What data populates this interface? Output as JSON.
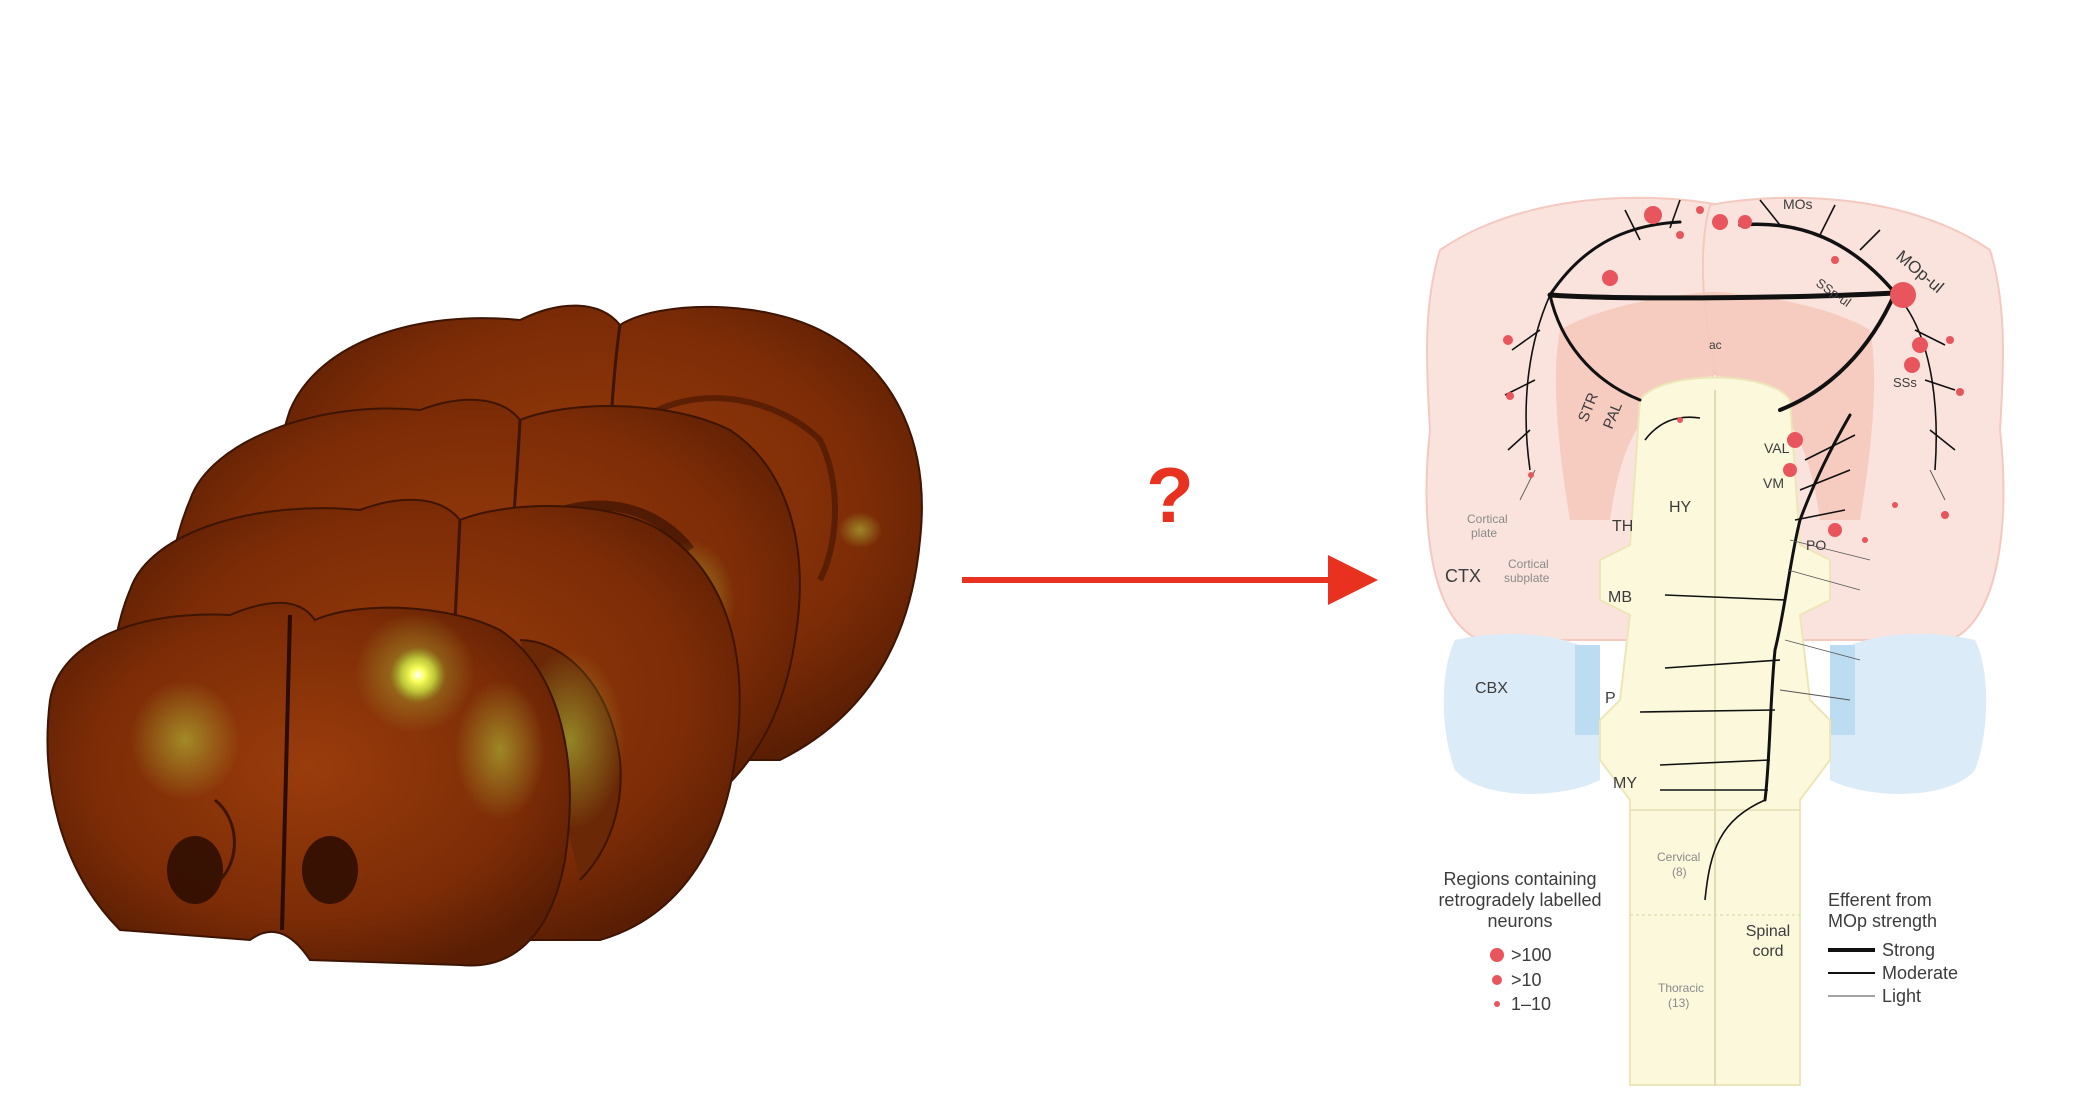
{
  "question_mark": "?",
  "labels": {
    "mos": "MOs",
    "ssp_ul": "SSp-ul",
    "mop_ul": "MOp-ul",
    "ssS": "SSs",
    "ac": "ac",
    "str": "STR",
    "pal": "PAL",
    "val": "VAL",
    "vm": "VM",
    "po": "PO",
    "th": "TH",
    "hy": "HY",
    "mb": "MB",
    "p": "P",
    "my": "MY",
    "ctx": "CTX",
    "cbx": "CBX",
    "cortical_plate_1": "Cortical",
    "cortical_plate_2": "plate",
    "cortical_subplate_1": "Cortical",
    "cortical_subplate_2": "subplate",
    "cervical_1": "Cervical",
    "cervical_2": "(8)",
    "thoracic_1": "Thoracic",
    "thoracic_2": "(13)",
    "spinal_cord_1": "Spinal",
    "spinal_cord_2": "cord"
  },
  "legend_regions": {
    "title_1": "Regions containing",
    "title_2": "retrogradely labelled",
    "title_3": "neurons",
    "items": [
      ">100",
      ">10",
      "1–10"
    ]
  },
  "legend_efferent": {
    "title_1": "Efferent from",
    "title_2": "MOp strength",
    "items": [
      "Strong",
      "Moderate",
      "Light"
    ]
  },
  "colors": {
    "arrow": "#e8321f",
    "dot": "#e8555d",
    "cortex": "#fbe3dd",
    "striatum": "#f6c8bb",
    "brainstem": "#fbf8dc",
    "cerebellum": "#dcebf8",
    "tissue": "#8a3208",
    "fluor": "#c8e04a"
  }
}
